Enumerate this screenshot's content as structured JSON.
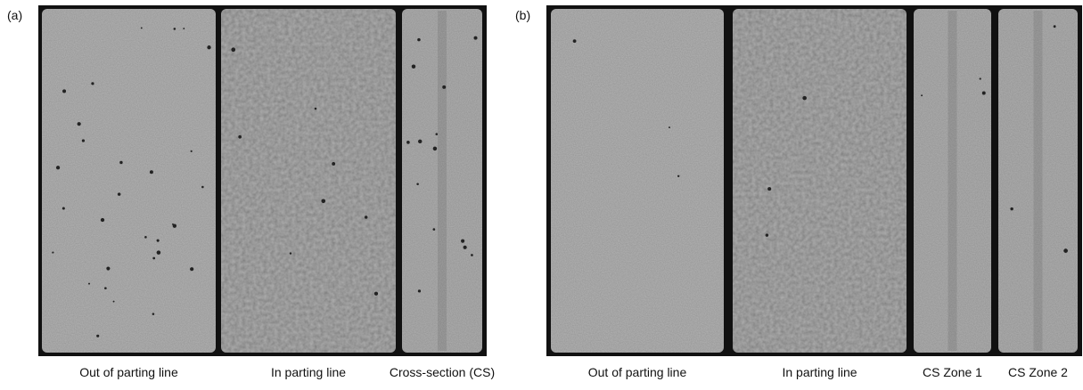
{
  "panels": [
    {
      "label": "(a)",
      "images": [
        {
          "caption": "Out of parting line"
        },
        {
          "caption": "In parting line"
        },
        {
          "caption": "Cross-section (CS)"
        }
      ]
    },
    {
      "label": "(b)",
      "images": [
        {
          "caption": "Out of parting line"
        },
        {
          "caption": "In parting line"
        },
        {
          "caption": "CS Zone 1"
        },
        {
          "caption": "CS Zone 2"
        }
      ]
    }
  ]
}
